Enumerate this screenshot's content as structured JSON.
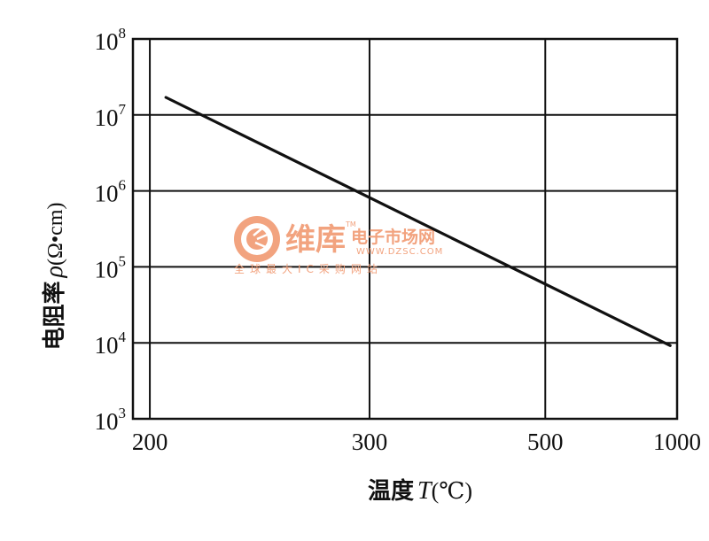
{
  "chart_data": {
    "type": "line",
    "xscale": "reciprocal",
    "yscale": "log",
    "xlabel_text": "温度",
    "xlabel_var": "T",
    "xlabel_unit": "(℃)",
    "ylabel_text": "电阻率",
    "ylabel_var": "ρ",
    "ylabel_unit": "(Ω•cm)",
    "x_ticks": [
      200,
      300,
      500,
      1000
    ],
    "x_tick_labels": [
      "200",
      "300",
      "500",
      "1000"
    ],
    "y_ticks": [
      1000,
      10000,
      100000,
      1000000,
      10000000,
      100000000
    ],
    "y_tick_labels": [
      {
        "base": "10",
        "exp": "3"
      },
      {
        "base": "10",
        "exp": "4"
      },
      {
        "base": "10",
        "exp": "5"
      },
      {
        "base": "10",
        "exp": "6"
      },
      {
        "base": "10",
        "exp": "7"
      },
      {
        "base": "10",
        "exp": "8"
      }
    ],
    "xlim": [
      195,
      1000
    ],
    "ylim": [
      1000,
      100000000
    ],
    "grid": true,
    "series": [
      {
        "color": "#111111",
        "points": [
          {
            "x": 205,
            "y": 17000000
          },
          {
            "x": 950,
            "y": 9200
          }
        ]
      }
    ]
  },
  "watermark": {
    "brand": "维库",
    "tagline": "电子市场网",
    "url": "WWW.DZSC.COM",
    "subtitle": "全球最大IC采购网站",
    "trademark": "TM",
    "color": "#f2a37f"
  }
}
